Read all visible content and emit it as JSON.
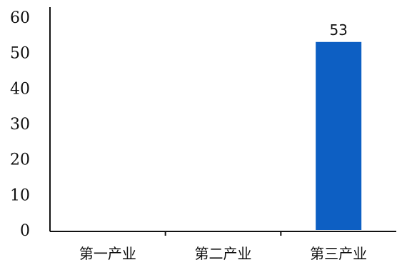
{
  "chart_data": {
    "type": "bar",
    "title": "",
    "xlabel": "",
    "ylabel": "",
    "categories": [
      "第一产业",
      "第二产业",
      "第三产业"
    ],
    "values": [
      0,
      0,
      53
    ],
    "data_labels": [
      "",
      "",
      "53"
    ],
    "ylim": [
      0,
      60
    ],
    "yticks": [
      0,
      10,
      20,
      30,
      40,
      50,
      60
    ],
    "grid": false,
    "legend": "none",
    "bar_color": "#0d5fc3",
    "axis_color": "#111111"
  }
}
